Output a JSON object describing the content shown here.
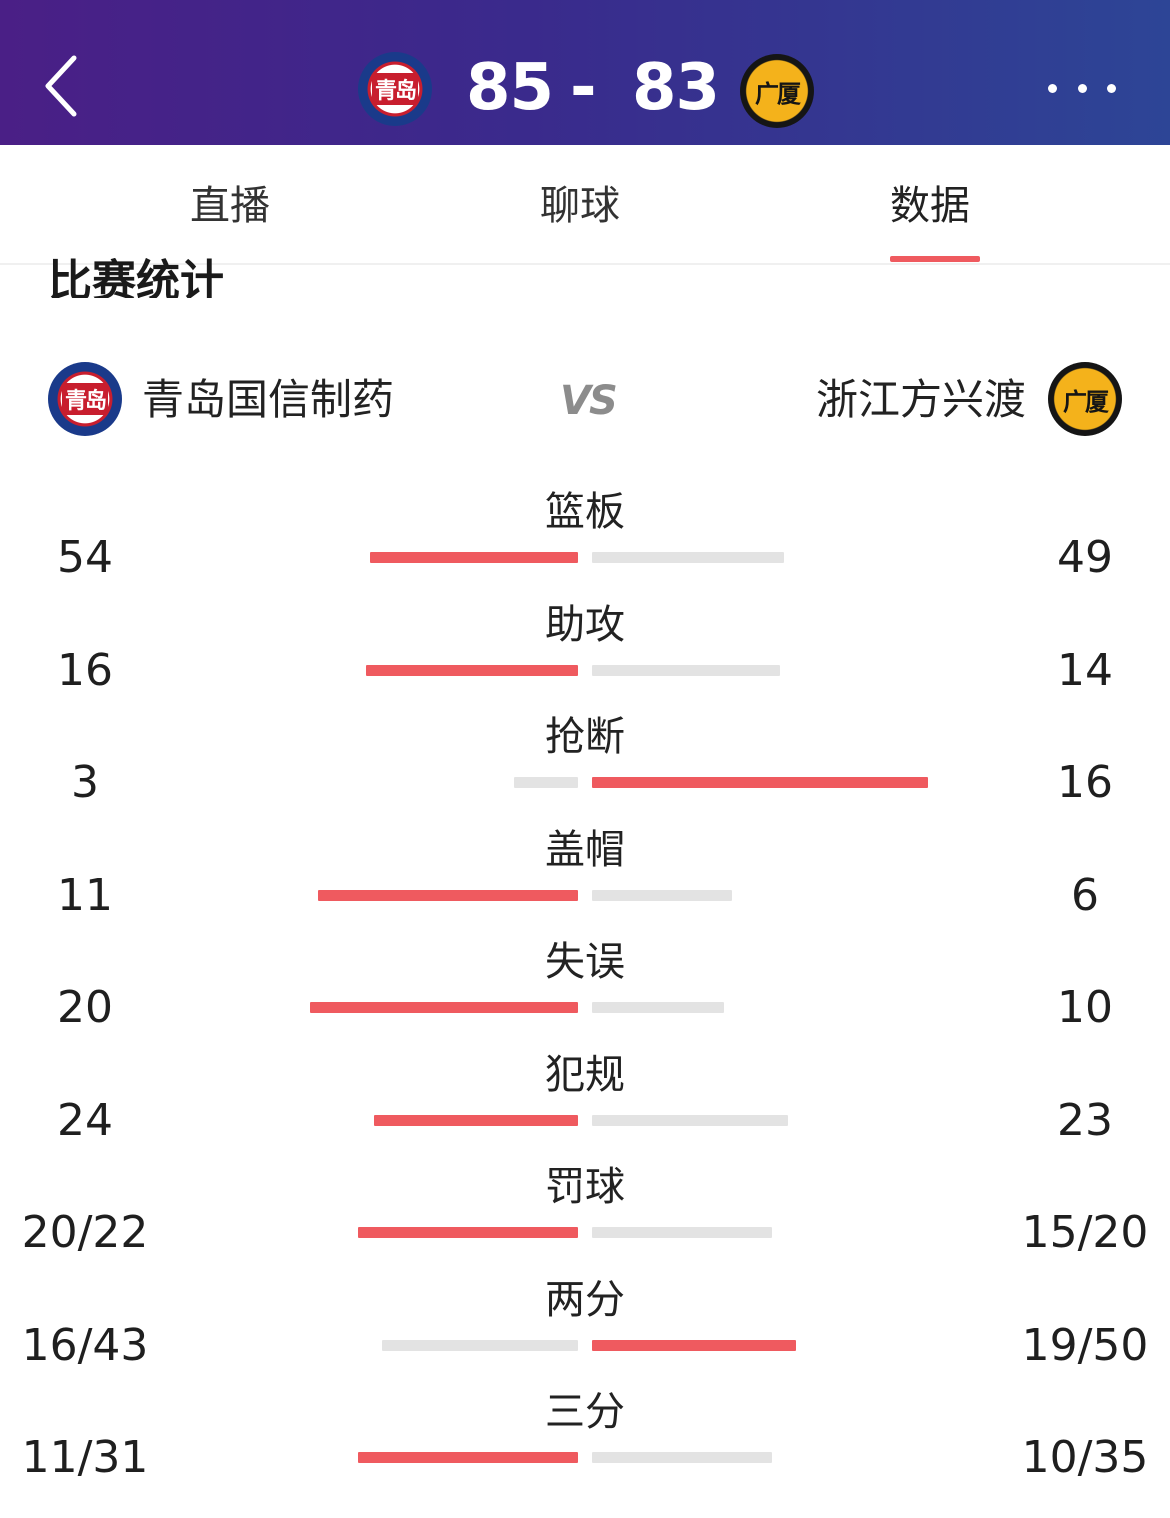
{
  "header": {
    "home_logo_text": "青岛",
    "away_logo_text": "广厦",
    "home_score": "85",
    "separator": "-",
    "away_score": "83"
  },
  "tabs": [
    {
      "label": "直播"
    },
    {
      "label": "聊球"
    },
    {
      "label": "数据",
      "active": true
    }
  ],
  "section": {
    "title": "比赛统计",
    "home_team": "青岛国信制药",
    "vs": "VS",
    "away_team": "浙江方兴渡"
  },
  "colors": {
    "header_gradient": [
      "#4a1f86",
      "#2d4596"
    ],
    "highlight_bar": "#ef5a5f",
    "muted_bar": "#e3e3e3"
  },
  "icons": [
    "back-arrow-icon",
    "more-dots-icon",
    "qingdao-team-logo",
    "guangsha-team-logo"
  ],
  "stats": [
    {
      "label": "篮板",
      "home": "54",
      "away": "49",
      "home_share": 0.52,
      "away_share": 0.48,
      "leader": "home"
    },
    {
      "label": "助攻",
      "home": "16",
      "away": "14",
      "home_share": 0.53,
      "away_share": 0.47,
      "leader": "home"
    },
    {
      "label": "抢断",
      "home": "3",
      "away": "16",
      "home_share": 0.16,
      "away_share": 0.84,
      "leader": "away"
    },
    {
      "label": "盖帽",
      "home": "11",
      "away": "6",
      "home_share": 0.65,
      "away_share": 0.35,
      "leader": "home"
    },
    {
      "label": "失误",
      "home": "20",
      "away": "10",
      "home_share": 0.67,
      "away_share": 0.33,
      "leader": "home"
    },
    {
      "label": "犯规",
      "home": "24",
      "away": "23",
      "home_share": 0.51,
      "away_share": 0.49,
      "leader": "home"
    },
    {
      "label": "罚球",
      "home": "20/22",
      "away": "15/20",
      "home_share": 0.55,
      "away_share": 0.45,
      "leader": "home"
    },
    {
      "label": "两分",
      "home": "16/43",
      "away": "19/50",
      "home_share": 0.49,
      "away_share": 0.51,
      "leader": "away"
    },
    {
      "label": "三分",
      "home": "11/31",
      "away": "10/35",
      "home_share": 0.55,
      "away_share": 0.45,
      "leader": "home"
    }
  ]
}
